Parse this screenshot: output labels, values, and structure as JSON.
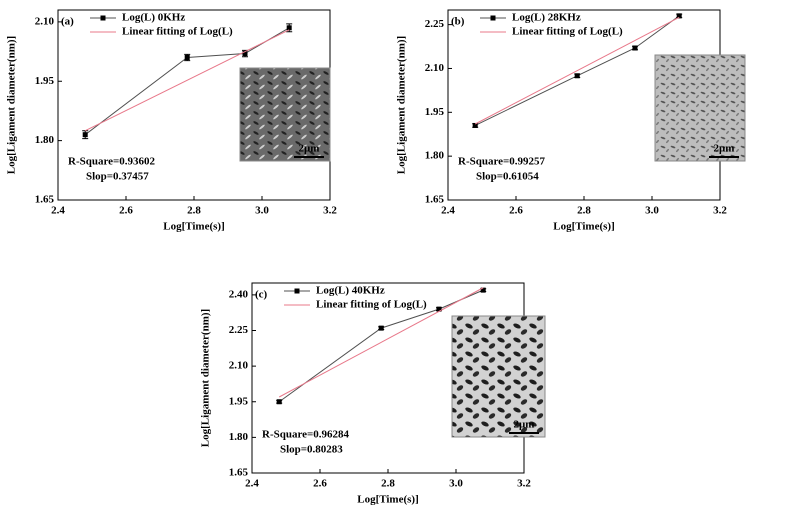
{
  "chart_data": [
    {
      "type": "line",
      "panel_label": "(a)",
      "x_label": "Log[Time(s)]",
      "y_label": "Log[Ligament diameter(nm)]",
      "xlim": [
        2.4,
        3.2
      ],
      "xticks": [
        2.4,
        2.6,
        2.8,
        {
          "value": 3,
          "label": "3.0"
        },
        3.2
      ],
      "ylim": [
        1.65,
        2.13
      ],
      "yticks": [
        1.65,
        {
          "value": 1.8,
          "label": "1.80"
        },
        1.95,
        {
          "value": 2.1,
          "label": "2.10"
        }
      ],
      "series": [
        {
          "name": "Log(L) 0KHz",
          "color": "#505050",
          "x": [
            2.48,
            2.78,
            2.95,
            3.08
          ],
          "values": [
            1.815,
            2.01,
            2.02,
            2.085
          ],
          "errors": [
            0.01,
            0.008,
            0.008,
            0.01
          ]
        },
        {
          "name": "Linear fitting of Log(L)",
          "color": "#e8788a",
          "x": [
            2.48,
            3.08
          ],
          "values": [
            1.825,
            2.08
          ]
        }
      ],
      "annotations": [
        "R-Square=0.93602",
        "Slop=0.37457"
      ],
      "inset_scale": "2μm"
    },
    {
      "type": "line",
      "panel_label": "(b)",
      "x_label": "Log[Time(s)]",
      "y_label": "Log[Ligament diameter(nm)]",
      "xlim": [
        2.4,
        3.2
      ],
      "xticks": [
        2.4,
        2.6,
        2.8,
        {
          "value": 3,
          "label": "3.0"
        },
        3.2
      ],
      "ylim": [
        1.65,
        2.3
      ],
      "yticks": [
        1.65,
        {
          "value": 1.8,
          "label": "1.80"
        },
        1.95,
        {
          "value": 2.1,
          "label": "2.10"
        },
        2.25
      ],
      "series": [
        {
          "name": "Log(L) 28KHz",
          "color": "#505050",
          "x": [
            2.48,
            2.78,
            2.95,
            3.08
          ],
          "values": [
            1.905,
            2.075,
            2.17,
            2.28
          ],
          "errors": [
            0.006,
            0.006,
            0.006,
            0.006
          ]
        },
        {
          "name": "Linear fitting of Log(L)",
          "color": "#e8788a",
          "x": [
            2.48,
            3.08
          ],
          "values": [
            1.91,
            2.275
          ]
        }
      ],
      "annotations": [
        "R-Square=0.99257",
        "Slop=0.61054"
      ],
      "inset_scale": "2μm"
    },
    {
      "type": "line",
      "panel_label": "(c)",
      "x_label": "Log[Time(s)]",
      "y_label": "Log[Ligament diameter(nm)]",
      "xlim": [
        2.4,
        3.2
      ],
      "xticks": [
        2.4,
        2.6,
        2.8,
        {
          "value": 3,
          "label": "3.0"
        },
        3.2
      ],
      "ylim": [
        1.65,
        2.45
      ],
      "yticks": [
        1.65,
        {
          "value": 1.8,
          "label": "1.80"
        },
        1.95,
        {
          "value": 2.1,
          "label": "2.10"
        },
        2.25,
        {
          "value": 2.4,
          "label": "2.40"
        }
      ],
      "series": [
        {
          "name": "Log(L) 40KHz",
          "color": "#505050",
          "x": [
            2.48,
            2.78,
            2.95,
            3.08
          ],
          "values": [
            1.95,
            2.26,
            2.34,
            2.42
          ],
          "errors": [
            0.006,
            0.006,
            0.006,
            0.006
          ]
        },
        {
          "name": "Linear fitting of Log(L)",
          "color": "#e8788a",
          "x": [
            2.48,
            3.08
          ],
          "values": [
            1.97,
            2.43
          ]
        }
      ],
      "annotations": [
        "R-Square=0.96284",
        "Slop=0.80283"
      ],
      "inset_scale": "2μm"
    }
  ]
}
